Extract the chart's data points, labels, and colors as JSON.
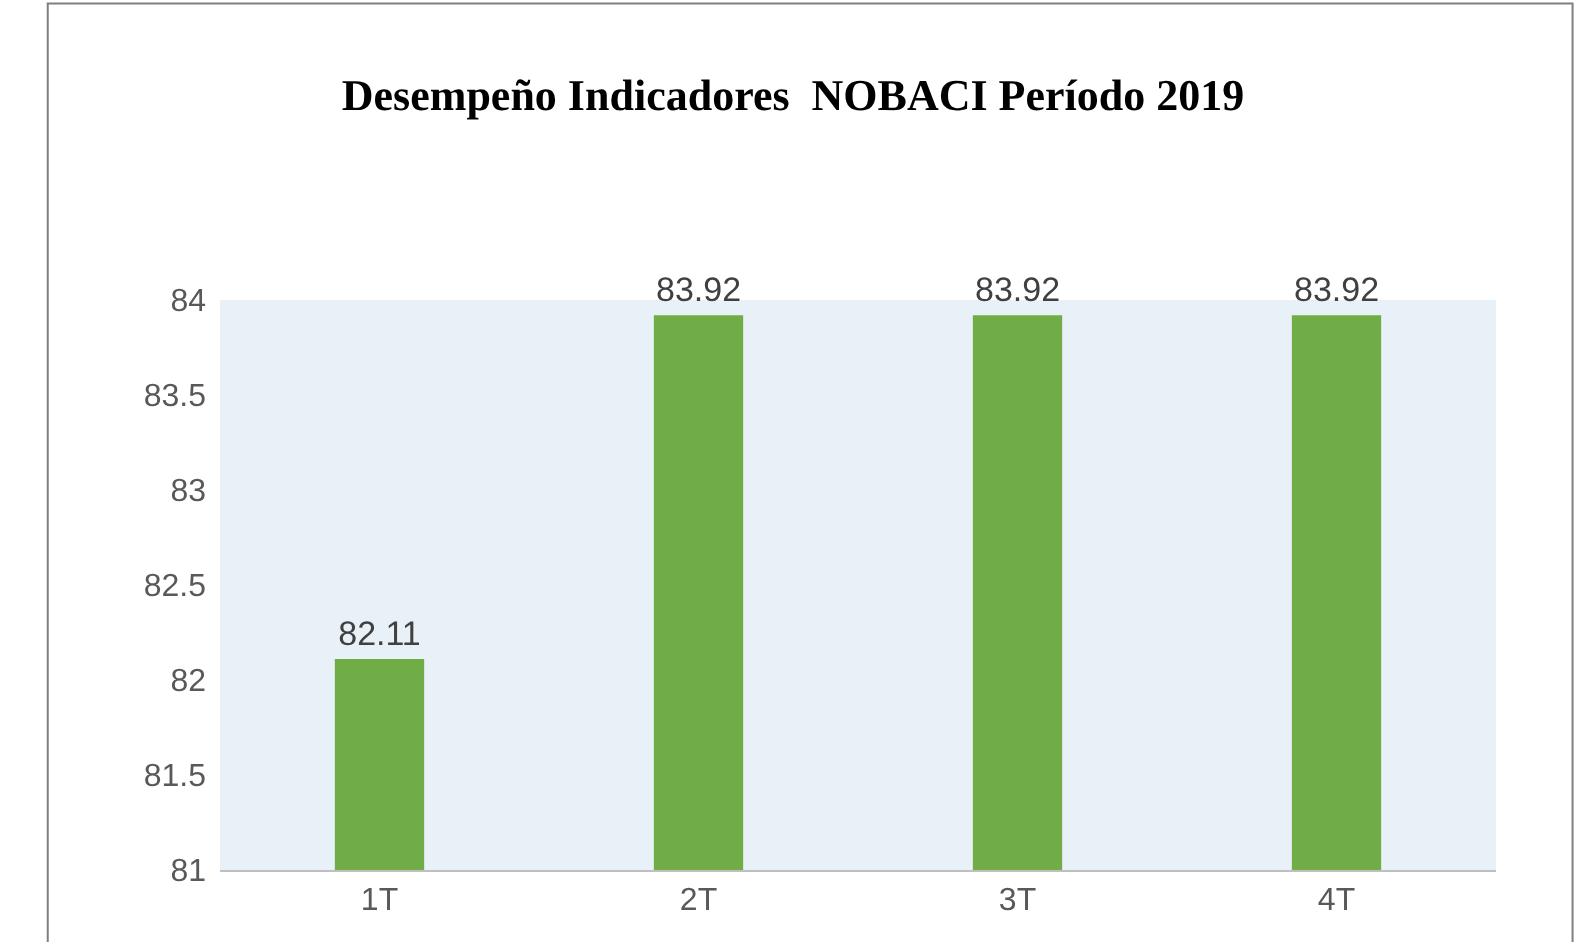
{
  "chart_data": {
    "type": "bar",
    "title": "Desempeño Indicadores  NOBACI Período 2019",
    "categories": [
      "1T",
      "2T",
      "3T",
      "4T"
    ],
    "values": [
      82.11,
      83.92,
      83.92,
      83.92
    ],
    "color": "#70ad47",
    "ylim": [
      81,
      84
    ],
    "yticks": [
      81,
      81.5,
      82,
      82.5,
      83,
      83.5,
      84
    ],
    "data_labels": true,
    "grid": false,
    "legend": false
  }
}
